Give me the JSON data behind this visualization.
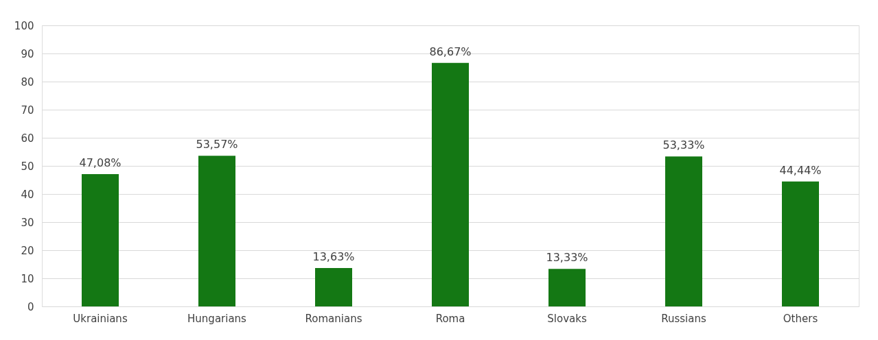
{
  "chart_data": {
    "type": "bar",
    "categories": [
      "Ukrainians",
      "Hungarians",
      "Romanians",
      "Roma",
      "Slovaks",
      "Russians",
      "Others"
    ],
    "values": [
      47.08,
      53.57,
      13.63,
      86.67,
      13.33,
      53.33,
      44.44
    ],
    "value_labels": [
      "47,08%",
      "53,57%",
      "13,63%",
      "86,67%",
      "13,33%",
      "53,33%",
      "44,44%"
    ],
    "color": "#147814",
    "ylim": [
      0,
      100
    ],
    "yticks": [
      0,
      10,
      20,
      30,
      40,
      50,
      60,
      70,
      80,
      90,
      100
    ],
    "grid": "y"
  }
}
